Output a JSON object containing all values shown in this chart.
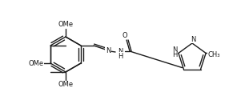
{
  "figsize": [
    2.96,
    1.4
  ],
  "dpi": 100,
  "bg": "#ffffff",
  "lc": "#1a1a1a",
  "lw": 1.0,
  "fs": 6.0,
  "xlim": [
    0,
    296
  ],
  "ylim": [
    0,
    140
  ]
}
